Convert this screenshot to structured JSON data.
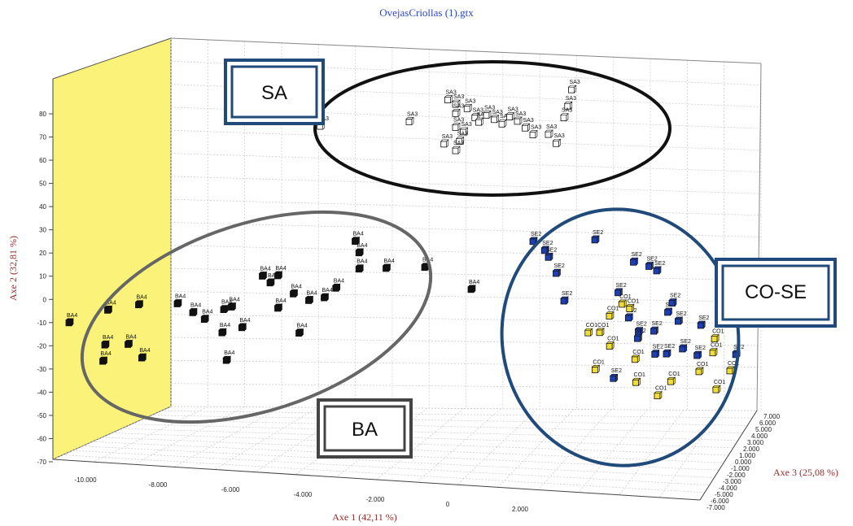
{
  "window_title": "OvejasCriollas (1).gtx",
  "chart_data": {
    "type": "scatter",
    "dimensions": 3,
    "axes": {
      "x": {
        "label": "Axe 1 (42,11 %)",
        "ticks": [
          "-10.000",
          "-8.000",
          "-6.000",
          "-4.000",
          "-2.000",
          "0",
          "2.000"
        ]
      },
      "y": {
        "label": "Axe 2 (32,81 %)",
        "ticks": [
          "80",
          "70",
          "60",
          "50",
          "40",
          "30",
          "20",
          "10",
          "0",
          "-10",
          "-20",
          "-30",
          "-40",
          "-50",
          "-60",
          "-70"
        ],
        "ylim": [
          -70,
          85
        ]
      },
      "z": {
        "label": "Axe 3 (25,08 %)",
        "ticks": [
          "7.000",
          "6.000",
          "5.000",
          "4.000",
          "3.000",
          "2.000",
          "1.000",
          "0.000",
          "-1.000",
          "-2.000",
          "-3.000",
          "-4.000",
          "-5.000",
          "-6.000",
          "-7.000"
        ]
      }
    },
    "grid": true,
    "series": [
      {
        "name": "SA3",
        "color": "#ffffff",
        "points": [
          [
            -4.5,
            72
          ],
          [
            -2.2,
            73
          ],
          [
            -1.2,
            82
          ],
          [
            -1.0,
            80
          ],
          [
            -1.0,
            76
          ],
          [
            -1.0,
            70
          ],
          [
            -0.7,
            78
          ],
          [
            -0.5,
            74
          ],
          [
            -0.8,
            68
          ],
          [
            -0.4,
            72
          ],
          [
            -0.2,
            75
          ],
          [
            0.0,
            73
          ],
          [
            0.2,
            71
          ],
          [
            0.4,
            74
          ],
          [
            0.6,
            72
          ],
          [
            0.8,
            69
          ],
          [
            1.0,
            66
          ],
          [
            -1.3,
            63
          ],
          [
            -0.9,
            64
          ],
          [
            -1.0,
            60
          ],
          [
            2.0,
            85
          ],
          [
            1.9,
            78
          ],
          [
            1.8,
            73
          ],
          [
            1.4,
            66
          ],
          [
            1.6,
            62
          ]
        ]
      },
      {
        "name": "BA4",
        "color": "#111111",
        "points": [
          [
            -11.0,
            -10
          ],
          [
            -10.0,
            -5
          ],
          [
            -9.2,
            -3
          ],
          [
            -10.0,
            -20
          ],
          [
            -9.4,
            -20
          ],
          [
            -10.0,
            -27
          ],
          [
            -9.0,
            -26
          ],
          [
            -8.2,
            -3
          ],
          [
            -7.8,
            -7
          ],
          [
            -7.5,
            -10
          ],
          [
            -7.0,
            -6
          ],
          [
            -6.8,
            -5
          ],
          [
            -7.0,
            -16
          ],
          [
            -6.5,
            -14
          ],
          [
            -6.8,
            -28
          ],
          [
            -6.0,
            8
          ],
          [
            -5.8,
            5
          ],
          [
            -5.6,
            8
          ],
          [
            -5.2,
            0
          ],
          [
            -5.6,
            -6
          ],
          [
            -5.0,
            -17
          ],
          [
            -4.8,
            -3
          ],
          [
            -4.4,
            -2
          ],
          [
            -4.1,
            2
          ],
          [
            -3.6,
            22
          ],
          [
            -3.5,
            17
          ],
          [
            -3.5,
            10
          ],
          [
            -2.8,
            10
          ],
          [
            -1.8,
            10
          ],
          [
            -0.6,
            0
          ]
        ]
      },
      {
        "name": "SE2",
        "color": "#1e3fb0",
        "points": [
          [
            1.0,
            20
          ],
          [
            1.3,
            16
          ],
          [
            1.4,
            13
          ],
          [
            1.6,
            6
          ],
          [
            1.8,
            -6
          ],
          [
            2.6,
            20
          ],
          [
            3.2,
            -3
          ],
          [
            3.6,
            10
          ],
          [
            4.0,
            8
          ],
          [
            4.2,
            6
          ],
          [
            4.5,
            -12
          ],
          [
            4.6,
            -8
          ],
          [
            3.5,
            -14
          ],
          [
            3.8,
            -20
          ],
          [
            4.2,
            -20
          ],
          [
            3.8,
            -23
          ],
          [
            4.8,
            -16
          ],
          [
            5.4,
            -18
          ],
          [
            4.3,
            -30
          ],
          [
            4.6,
            -30
          ],
          [
            5.0,
            -28
          ],
          [
            5.4,
            -31
          ],
          [
            6.4,
            -31
          ],
          [
            3.3,
            -40
          ]
        ]
      },
      {
        "name": "CO1",
        "color": "#f0dd3a",
        "points": [
          [
            2.5,
            -20
          ],
          [
            2.8,
            -20
          ],
          [
            3.0,
            -13
          ],
          [
            3.3,
            -8
          ],
          [
            3.5,
            -10
          ],
          [
            3.1,
            -26
          ],
          [
            3.8,
            -32
          ],
          [
            2.8,
            -36
          ],
          [
            3.9,
            -42
          ],
          [
            5.8,
            -24
          ],
          [
            5.8,
            -30
          ],
          [
            5.5,
            -38
          ],
          [
            6.3,
            -38
          ],
          [
            4.8,
            -42
          ],
          [
            4.5,
            -48
          ],
          [
            6.0,
            -46
          ]
        ]
      }
    ],
    "legend": null
  },
  "annotations": {
    "sa": "SA",
    "ba": "BA",
    "coseg": "CO-SE"
  }
}
